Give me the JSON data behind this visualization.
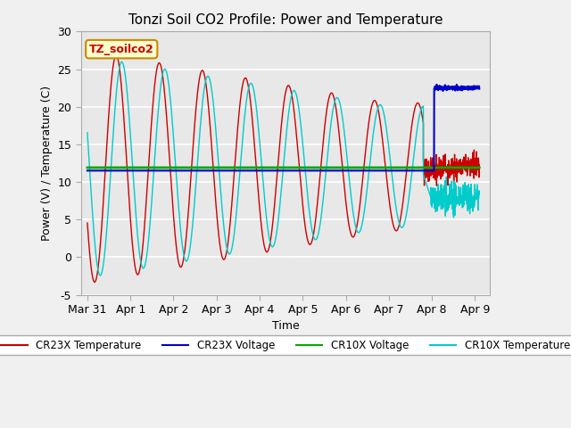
{
  "title": "Tonzi Soil CO2 Profile: Power and Temperature",
  "xlabel": "Time",
  "ylabel": "Power (V) / Temperature (C)",
  "ylim": [
    -5,
    30
  ],
  "yticks": [
    -5,
    0,
    5,
    10,
    15,
    20,
    25,
    30
  ],
  "xtick_labels": [
    "Mar 31",
    "Apr 1",
    "Apr 2",
    "Apr 3",
    "Apr 4",
    "Apr 5",
    "Apr 6",
    "Apr 7",
    "Apr 8",
    "Apr 9"
  ],
  "xtick_positions": [
    0,
    1,
    2,
    3,
    4,
    5,
    6,
    7,
    8,
    9
  ],
  "bg_color": "#f0f0f0",
  "plot_bg_color": "#e8e8e8",
  "cr23x_temp_color": "#cc0000",
  "cr23x_volt_color": "#0000cc",
  "cr10x_volt_color": "#00aa00",
  "cr10x_temp_color": "#00cccc",
  "annotation_text": "TZ_soilco2",
  "legend_entries": [
    "CR23X Temperature",
    "CR23X Voltage",
    "CR10X Voltage",
    "CR10X Temperature"
  ],
  "legend_colors": [
    "#cc0000",
    "#0000cc",
    "#00aa00",
    "#00cccc"
  ]
}
